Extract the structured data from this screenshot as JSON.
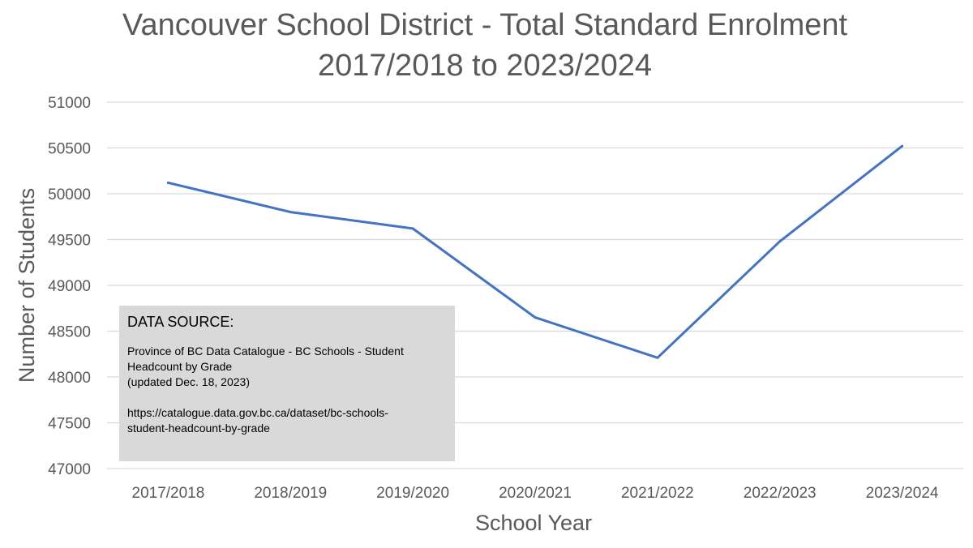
{
  "chart_data": {
    "type": "line",
    "title_lines": [
      "Vancouver School District - Total Standard Enrolment",
      "2017/2018  to 2023/2024"
    ],
    "xlabel": "School Year",
    "ylabel": "Number of Students",
    "categories": [
      "2017/2018",
      "2018/2019",
      "2019/2020",
      "2020/2021",
      "2021/2022",
      "2022/2023",
      "2023/2024"
    ],
    "series": [
      {
        "values": [
          50120,
          49800,
          49620,
          48650,
          48210,
          49480,
          50520
        ]
      }
    ],
    "ylim": [
      47000,
      51000
    ],
    "yticks": [
      47000,
      47500,
      48000,
      48500,
      49000,
      49500,
      50000,
      50500,
      51000
    ],
    "grid": true,
    "legend": "none",
    "line_color": "#4472c4"
  },
  "source_box": {
    "heading": "DATA SOURCE:",
    "line1": "Province of BC Data Catalogue - BC Schools - Student",
    "line2": "Headcount by Grade",
    "line3": "(updated Dec. 18, 2023)",
    "url_line1": "https://catalogue.data.gov.bc.ca/dataset/bc-schools-",
    "url_line2": "student-headcount-by-grade"
  }
}
